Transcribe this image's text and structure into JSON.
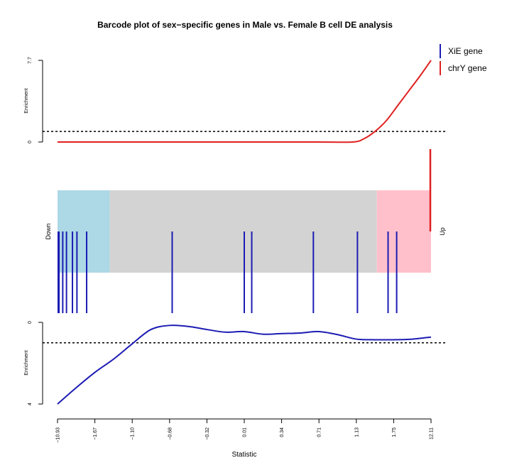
{
  "chart_data": {
    "type": "barcode",
    "title": "Barcode plot of sex−specific genes in Male vs. Female B cell DE analysis",
    "xlabel": "Statistic",
    "x_ticks": [
      "−10.93",
      "−1.67",
      "−1.10",
      "−0.68",
      "−0.32",
      "0.01",
      "0.34",
      "0.71",
      "1.13",
      "1.75",
      "12.11"
    ],
    "down_label": "Down",
    "up_label": "Up",
    "legend": [
      {
        "label": "XiE gene",
        "color": "#1c1cb4"
      },
      {
        "label": "chrY gene",
        "color": "#e02020"
      }
    ],
    "regions": [
      {
        "name": "down",
        "color": "#add8e6",
        "from": 0.0,
        "to": 0.14
      },
      {
        "name": "middle",
        "color": "#d3d3d3",
        "from": 0.14,
        "to": 0.855
      },
      {
        "name": "up",
        "color": "#ffc0cb",
        "from": 0.855,
        "to": 1.0
      }
    ],
    "xie_gene_positions": [
      0.0,
      0.004,
      0.014,
      0.024,
      0.04,
      0.052,
      0.078,
      0.307,
      0.5,
      0.52,
      0.685,
      0.803,
      0.885,
      0.908
    ],
    "chry_gene_positions": [
      1.0
    ],
    "top_panel": {
      "ylabel": "Enrichment",
      "ylim": [
        0,
        7.7
      ],
      "y_ticks": [
        "0",
        "7.7"
      ],
      "reference_line": 1.0,
      "series": {
        "name": "chrY gene",
        "color": "#e02020",
        "x": [
          0.0,
          0.1,
          0.2,
          0.3,
          0.4,
          0.5,
          0.6,
          0.7,
          0.79,
          0.82,
          0.85,
          0.88,
          0.91,
          0.94,
          0.97,
          1.0
        ],
        "y": [
          0.0,
          0.0,
          0.0,
          0.0,
          0.0,
          0.0,
          0.0,
          0.0,
          0.0,
          0.3,
          1.0,
          2.0,
          3.4,
          4.8,
          6.2,
          7.7
        ]
      }
    },
    "bottom_panel": {
      "ylabel": "Enrichment",
      "ylim": [
        0,
        4
      ],
      "inverted": true,
      "y_ticks": [
        "0",
        "4"
      ],
      "reference_line": 1.0,
      "series": {
        "name": "XiE gene",
        "color": "#1c1cb4",
        "x": [
          0.0,
          0.05,
          0.1,
          0.15,
          0.2,
          0.25,
          0.3,
          0.35,
          0.4,
          0.45,
          0.5,
          0.55,
          0.6,
          0.65,
          0.7,
          0.75,
          0.8,
          0.85,
          0.9,
          0.95,
          1.0
        ],
        "y": [
          4.0,
          3.2,
          2.45,
          1.8,
          1.05,
          0.35,
          0.15,
          0.2,
          0.35,
          0.48,
          0.45,
          0.58,
          0.55,
          0.52,
          0.45,
          0.6,
          0.82,
          0.85,
          0.85,
          0.82,
          0.72
        ]
      }
    }
  }
}
